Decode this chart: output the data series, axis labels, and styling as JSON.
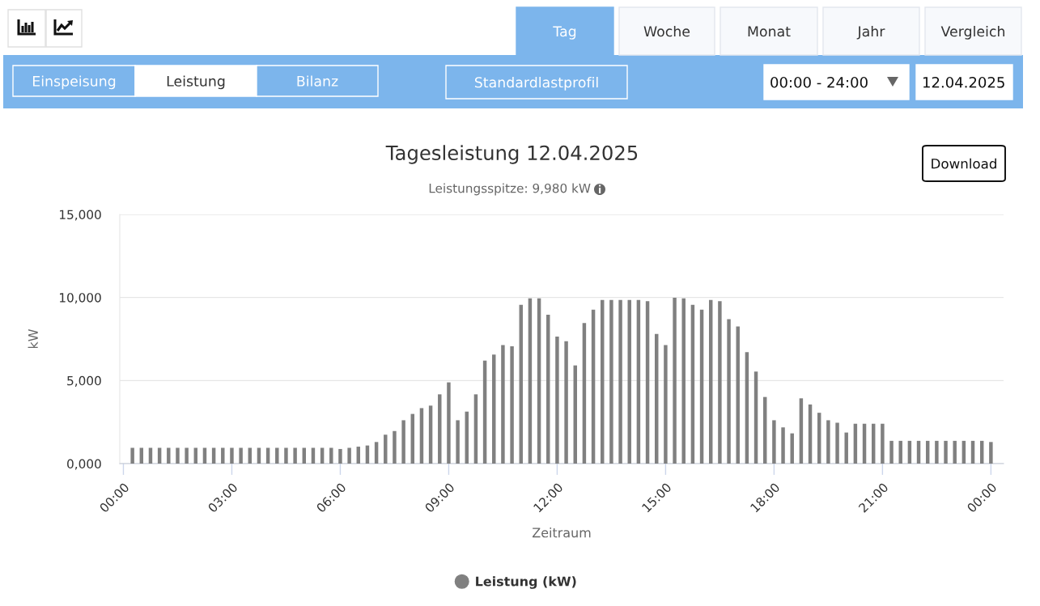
{
  "chart_data": {
    "type": "bar",
    "title": "Tagesleistung 12.04.2025",
    "subtitle": "Leistungsspitze: 9,980 kW",
    "xlabel": "Zeitraum",
    "ylabel": "kW",
    "x": [
      0.25,
      0.5,
      0.75,
      1,
      1.25,
      1.5,
      1.75,
      2,
      2.25,
      2.5,
      2.75,
      3,
      3.25,
      3.5,
      3.75,
      4,
      4.25,
      4.5,
      4.75,
      5,
      5.25,
      5.5,
      5.75,
      6,
      6.25,
      6.5,
      6.75,
      7,
      7.25,
      7.5,
      7.75,
      8,
      8.25,
      8.5,
      8.75,
      9,
      9.25,
      9.5,
      9.75,
      10,
      10.25,
      10.5,
      10.75,
      11,
      11.25,
      11.5,
      11.75,
      12,
      12.25,
      12.5,
      12.75,
      13,
      13.25,
      13.5,
      13.75,
      14,
      14.25,
      14.5,
      14.75,
      15,
      15.25,
      15.5,
      15.75,
      16,
      16.25,
      16.5,
      16.75,
      17,
      17.25,
      17.5,
      17.75,
      18,
      18.25,
      18.5,
      18.75,
      19,
      19.25,
      19.5,
      19.75,
      20,
      20.25,
      20.5,
      20.75,
      21,
      21.25,
      21.5,
      21.75,
      22,
      22.25,
      22.5,
      22.75,
      23,
      23.25,
      23.5,
      23.75,
      24
    ],
    "series": [
      {
        "name": "Leistung (kW)",
        "color": "#808080",
        "values": [
          950,
          950,
          950,
          950,
          950,
          950,
          950,
          950,
          950,
          950,
          950,
          950,
          950,
          950,
          950,
          950,
          950,
          950,
          950,
          950,
          950,
          950,
          950,
          880,
          950,
          1020,
          1090,
          1300,
          1740,
          1960,
          2610,
          2990,
          3340,
          3490,
          4170,
          4890,
          2610,
          3130,
          4170,
          6200,
          6560,
          7140,
          7060,
          9560,
          9950,
          9950,
          8960,
          7650,
          7370,
          5910,
          8460,
          9270,
          9850,
          9850,
          9850,
          9850,
          9850,
          9780,
          7810,
          7140,
          9980,
          9950,
          9560,
          9270,
          9850,
          9780,
          8690,
          8250,
          6710,
          5540,
          4010,
          2610,
          2180,
          1820,
          3930,
          3560,
          3060,
          2610,
          2460,
          1870,
          2400,
          2400,
          2400,
          2400,
          1370,
          1370,
          1370,
          1370,
          1370,
          1370,
          1370,
          1370,
          1370,
          1370,
          1370,
          1300
        ]
      }
    ],
    "xlim": [
      -0.1,
      24.35
    ],
    "xticks": [
      {
        "value": 0,
        "label": "00:00"
      },
      {
        "value": 3,
        "label": "03:00"
      },
      {
        "value": 6,
        "label": "06:00"
      },
      {
        "value": 9,
        "label": "09:00"
      },
      {
        "value": 12,
        "label": "12:00"
      },
      {
        "value": 15,
        "label": "15:00"
      },
      {
        "value": 18,
        "label": "18:00"
      },
      {
        "value": 21,
        "label": "21:00"
      },
      {
        "value": 24,
        "label": "00:00"
      }
    ],
    "ylim": [
      0,
      15000
    ],
    "yticks": [
      {
        "value": 0,
        "label": "0,000"
      },
      {
        "value": 5000,
        "label": "5,000"
      },
      {
        "value": 10000,
        "label": "10,000"
      },
      {
        "value": 15000,
        "label": "15,000"
      }
    ],
    "grid": "y",
    "legend": "bottom",
    "annotations": [
      "Tag",
      "Woche",
      "Monat",
      "Jahr",
      "Vergleich",
      "Einspeisung",
      "Leistung",
      "Bilanz",
      "Standardlastprofil",
      "00:00 - 24:00",
      "12.04.2025",
      "Download"
    ]
  }
}
